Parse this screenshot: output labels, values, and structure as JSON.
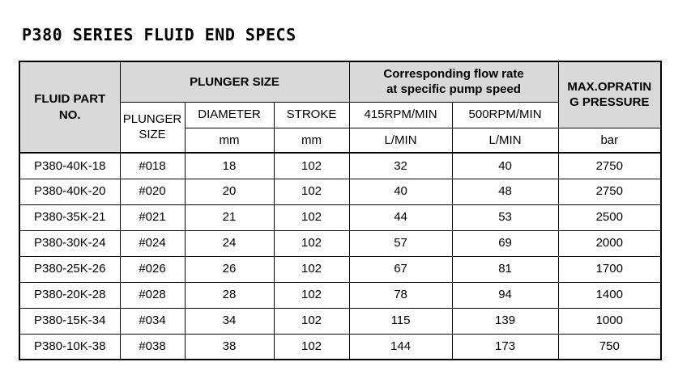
{
  "page_title": "P380 SERIES FLUID END SPECS",
  "table": {
    "header": {
      "fluid_part_no": "FLUID PART\nNO.",
      "plunger_size_group": "PLUNGER SIZE",
      "flow_rate_group": "Corresponding flow rate\nat specific pump speed",
      "max_operating_pressure": "MAX.OPRATIN\nG PRESSURE",
      "plunger_size_sub": "PLUNGER\nSIZE",
      "diameter": "DIAMETER",
      "stroke": "STROKE",
      "rpm_415": "415RPM/MIN",
      "rpm_500": "500RPM/MIN",
      "diameter_unit": "mm",
      "stroke_unit": "mm",
      "rpm_415_unit": "L/MIN",
      "rpm_500_unit": "L/MIN",
      "pressure_unit": "bar"
    },
    "rows": [
      [
        "P380-40K-18",
        "#018",
        "18",
        "102",
        "32",
        "40",
        "2750"
      ],
      [
        "P380-40K-20",
        "#020",
        "20",
        "102",
        "40",
        "48",
        "2750"
      ],
      [
        "P380-35K-21",
        "#021",
        "21",
        "102",
        "44",
        "53",
        "2500"
      ],
      [
        "P380-30K-24",
        "#024",
        "24",
        "102",
        "57",
        "69",
        "2000"
      ],
      [
        "P380-25K-26",
        "#026",
        "26",
        "102",
        "67",
        "81",
        "1700"
      ],
      [
        "P380-20K-28",
        "#028",
        "28",
        "102",
        "78",
        "94",
        "1400"
      ],
      [
        "P380-15K-34",
        "#034",
        "34",
        "102",
        "115",
        "139",
        "1000"
      ],
      [
        "P380-10K-38",
        "#038",
        "38",
        "102",
        "144",
        "173",
        "750"
      ]
    ]
  },
  "colors": {
    "page_bg": "#ffffff",
    "header_bg": "#d9d9d9",
    "border": "#000000",
    "text": "#000000"
  }
}
